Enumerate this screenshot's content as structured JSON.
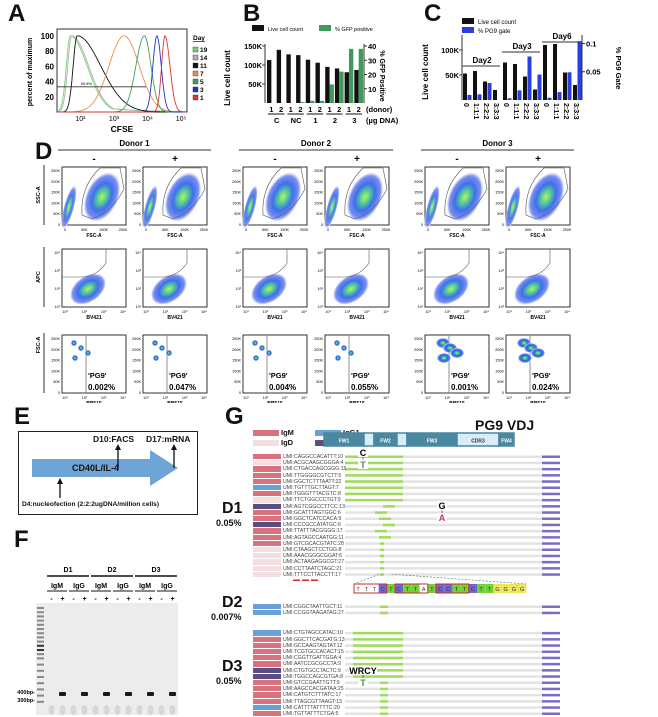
{
  "panels": {
    "A": "A",
    "B": "B",
    "C": "C",
    "D": "D",
    "E": "E",
    "F": "F",
    "G": "G"
  },
  "chart_data": [
    {
      "id": "A",
      "type": "line",
      "title": "",
      "xlabel": "CFSE",
      "ylabel": "percent of maximum",
      "xscale": "log",
      "xlim": [
        20,
        150000
      ],
      "ylim": [
        0,
        105
      ],
      "xticks": [
        "10²",
        "10³",
        "10⁴",
        "10⁵"
      ],
      "yticks": [
        "20",
        "40",
        "60",
        "80",
        "100"
      ],
      "legend_title": "Day",
      "legend_position": "right",
      "gate_label": "99.8%",
      "series": [
        {
          "name": "19",
          "color": "#6fd66f",
          "peak_x": 50
        },
        {
          "name": "14",
          "color": "#b0b0b0",
          "peak_x": 55
        },
        {
          "name": "11",
          "color": "#111111",
          "peak_x": 80
        },
        {
          "name": "7",
          "color": "#e8904a",
          "peak_x": 2000
        },
        {
          "name": "5",
          "color": "#3aa35a",
          "peak_x": 8000
        },
        {
          "name": "3",
          "color": "#2233cc",
          "peak_x": 19000
        },
        {
          "name": "1",
          "color": "#dd3333",
          "peak_x": 33000
        }
      ]
    },
    {
      "id": "B",
      "type": "bar",
      "ylabel": "Live cell count",
      "y2label": "% GFP Positive",
      "ylim": [
        0,
        150000
      ],
      "y2lim": [
        0,
        40
      ],
      "yticks": [
        "50K",
        "100K",
        "150K"
      ],
      "y2ticks": [
        "10",
        "20",
        "30",
        "40"
      ],
      "donor_label": "(donor)",
      "dna_label": "(µg DNA)",
      "groups": [
        "C",
        "NC",
        "1",
        "2",
        "3"
      ],
      "donors": [
        "1",
        "2",
        "1",
        "2",
        "1",
        "2",
        "1",
        "2",
        "1",
        "2"
      ],
      "series": [
        {
          "name": "Live cell count",
          "color": "#111111",
          "axis": "left",
          "values": [
            113000,
            140000,
            128000,
            126000,
            114000,
            106000,
            95000,
            91000,
            81000,
            87000
          ]
        },
        {
          "name": "% GFP positive",
          "color": "#3f9a5c",
          "axis": "right",
          "values": [
            0,
            0,
            0,
            0.6,
            1.5,
            1.5,
            13,
            22,
            38,
            38
          ]
        }
      ]
    },
    {
      "id": "C",
      "type": "bar",
      "ylabel": "Live cell count",
      "y2label": "% PG9 Gate",
      "ylim": [
        0,
        130000
      ],
      "y2lim": [
        0,
        0.115
      ],
      "yticks": [
        "50K",
        "100K"
      ],
      "y2ticks": [
        "0.05",
        "0.1"
      ],
      "groups": [
        "Day2",
        "Day3",
        "Day6"
      ],
      "categories": [
        "0",
        "1:1:1",
        "2:2:2",
        "3:3:3",
        "0",
        "1:1:1",
        "2:2:2",
        "3:3:3",
        "0",
        "1:1:1",
        "2:2:2",
        "3:3:3"
      ],
      "series": [
        {
          "name": "Live cell count",
          "color": "#111111",
          "axis": "left",
          "values": [
            53000,
            58000,
            37000,
            20000,
            75000,
            72000,
            47000,
            21000,
            110000,
            112000,
            55000,
            30000
          ]
        },
        {
          "name": "% PG9 gate",
          "color": "#2a3fe0",
          "axis": "right",
          "values": [
            0.009,
            0.01,
            0.03,
            0.0,
            0.003,
            0.017,
            0.077,
            0.045,
            0.004,
            0.014,
            0.049,
            0.104
          ]
        }
      ]
    }
  ],
  "panelD": {
    "donors": [
      "Donor 1",
      "Donor 2",
      "Donor 3"
    ],
    "conditions": [
      "-",
      "+"
    ],
    "row1": {
      "ylabel": "SSC-A",
      "xlabel": "FSC-A",
      "yticks": [
        "250K",
        "200K",
        "150K",
        "100K",
        "50K",
        "0"
      ],
      "xticks": [
        "0",
        "50K",
        "150K",
        "250K"
      ]
    },
    "row2": {
      "ylabel": "APC",
      "xlabel": "BV421",
      "yticks": [
        "10⁴",
        "10³",
        "10²",
        "10¹"
      ],
      "xticks": [
        "10¹",
        "10²",
        "10³",
        "10⁴"
      ]
    },
    "row3": {
      "ylabel": "FSC-A",
      "xlabel": "BB515",
      "yticks": [
        "250K",
        "200K",
        "150K",
        "100K",
        "50K",
        "0"
      ],
      "xticks": [
        "10¹",
        "10²",
        "10³",
        "10⁴"
      ],
      "gate_name": "'PG9'",
      "percents": [
        "0.002%",
        "0.047%",
        "0.004%",
        "0.055%",
        "0.001%",
        "0.024%"
      ]
    }
  },
  "panelE": {
    "arrow_label": "CD40L/IL-4",
    "facs": "D10:FACS",
    "mrna": "D17:mRNA",
    "nucleofection": "D4:nucleofection (2:2:2ugDNA/million cells)"
  },
  "panelF": {
    "donors": [
      "D1",
      "D2",
      "D3"
    ],
    "isotypes": [
      "IgM",
      "IgG",
      "IgM",
      "IgG",
      "IgM",
      "IgG"
    ],
    "lanes": [
      "-",
      "+",
      "-",
      "+",
      "-",
      "+",
      "-",
      "+",
      "-",
      "+",
      "-",
      "+"
    ],
    "markers": [
      "400bp-",
      "300bp-"
    ]
  },
  "panelG": {
    "title": "PG9 VDJ",
    "regions": [
      "FW1",
      "FW2",
      "FW3",
      "CDR3",
      "FW4"
    ],
    "legend": [
      {
        "label": "IgM",
        "color": "#d9727f"
      },
      {
        "label": "IgD",
        "color": "#f1dfe2"
      },
      {
        "label": "IgG1",
        "color": "#6a9fd8"
      },
      {
        "label": "IgG",
        "color": "#5a4d82"
      }
    ],
    "groups": [
      {
        "donor": "D1",
        "percent": "0.05%",
        "reads": [
          {
            "umi": "UMI:CAGGCCACATTT:10",
            "iso": "IgM"
          },
          {
            "umi": "UMI:ACGCAAGCGGGA:4",
            "iso": "IgD"
          },
          {
            "umi": "UMI:CTGACCAGCGGG:15",
            "iso": "IgM"
          },
          {
            "umi": "UMI:TTGGGGCGTCTT:5",
            "iso": "IgM"
          },
          {
            "umi": "UMI:GGCTCTTTAATT:22",
            "iso": "IgM"
          },
          {
            "umi": "UMI:TGTTTGCTTAGT:7",
            "iso": "IgG1"
          },
          {
            "umi": "UMI:TGGGTTTACGTC:8",
            "iso": "IgM"
          },
          {
            "umi": "UMI:TTCTGGCCCTGT:9",
            "iso": "IgD"
          },
          {
            "umi": "UMI:AGTCGGCCTTCC:13",
            "iso": "IgG"
          },
          {
            "umi": "UMI:GCATTTAGTGGC:6",
            "iso": "IgM"
          },
          {
            "umi": "UMI:GGCTCATCCACA:9",
            "iso": "IgM"
          },
          {
            "umi": "UMI:CCCGCCATATGC:6",
            "iso": "IgG"
          },
          {
            "umi": "UMI:TTATTTACGGGG:17",
            "iso": "IgM"
          },
          {
            "umi": "UMI:AGTAGCCAATGG:11",
            "iso": "IgM"
          },
          {
            "umi": "UMI:GTCGCACGTATC:28",
            "iso": "IgM"
          },
          {
            "umi": "UMI:CTAAGCTCCTGG:8",
            "iso": "IgD"
          },
          {
            "umi": "UMI:AAACGGGCGGAT:6",
            "iso": "IgD"
          },
          {
            "umi": "UMI:ACTAAGAGGCGT:27",
            "iso": "IgD"
          },
          {
            "umi": "UMI:CCTTAATCTAGC:21",
            "iso": "IgD"
          },
          {
            "umi": "UMI:TTTCCTTACCTT:17",
            "iso": "IgD"
          }
        ]
      },
      {
        "donor": "D2",
        "percent": "0.007%",
        "reads": [
          {
            "umi": "UMI:CGGCTAATTGCT:11",
            "iso": "IgG1"
          },
          {
            "umi": "UMI:CCGGTAAGATAG:27",
            "iso": "IgG1"
          }
        ]
      },
      {
        "donor": "D3",
        "percent": "0.05%",
        "reads": [
          {
            "umi": "UMI:CTGTAGCCATAC:10",
            "iso": "IgG1"
          },
          {
            "umi": "UMI:GGCTTCACGATG:13",
            "iso": "IgM"
          },
          {
            "umi": "UMI:GCCAAGTAGTAT:12",
            "iso": "IgM"
          },
          {
            "umi": "UMI:TCGTGCCACACT:15",
            "iso": "IgM"
          },
          {
            "umi": "UMI:CGGTTGATTGGA:4",
            "iso": "IgM"
          },
          {
            "umi": "UMI:AATCCGCGCCTA:9",
            "iso": "IgM"
          },
          {
            "umi": "UMI:CTGTGCCTACTC:9",
            "iso": "IgG"
          },
          {
            "umi": "UMI:TGGCCAGCGTGA:8",
            "iso": "IgG"
          },
          {
            "umi": "UMI:GTCCGAATTGTT:9",
            "iso": "IgM"
          },
          {
            "umi": "UMI:AAGCCACGATAA:25",
            "iso": "IgM"
          },
          {
            "umi": "UMI:CATGTCTTTATC:17",
            "iso": "IgM"
          },
          {
            "umi": "UMI:TTAGCGTTAAGT:13",
            "iso": "IgM"
          },
          {
            "umi": "UMI:CATTTTATTTTC:20",
            "iso": "IgG1"
          },
          {
            "umi": "UMI:TGTTATTTCTGA:5",
            "iso": "IgM"
          }
        ]
      }
    ],
    "mutations": [
      {
        "from": "C",
        "to": "T"
      },
      {
        "from": "G",
        "to": "A"
      },
      {
        "from": "WRCY",
        "to": "T"
      }
    ],
    "expanded_sequence": [
      "T",
      "T",
      "T",
      "C",
      "T",
      "C",
      "T",
      "T",
      "A",
      "T",
      "C",
      "C",
      "T",
      "T",
      "C",
      "T",
      "T",
      "G",
      "G",
      "G",
      "G"
    ]
  }
}
